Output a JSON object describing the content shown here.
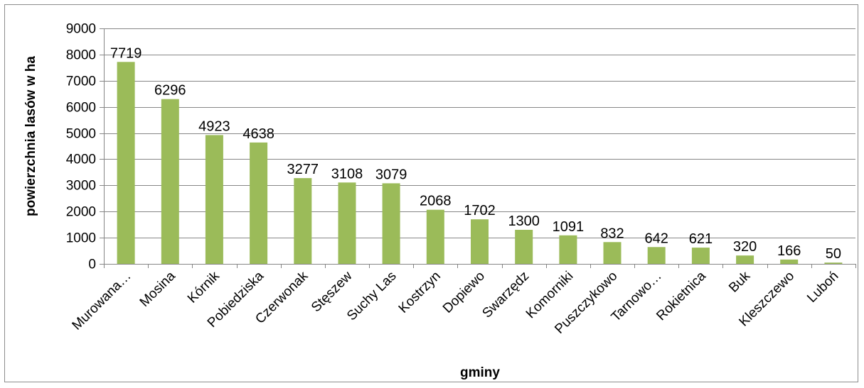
{
  "chart_data": {
    "type": "bar",
    "categories": [
      "Murowana…",
      "Mosina",
      "Kórnik",
      "Pobiedziska",
      "Czerwonak",
      "Stęszew",
      "Suchy Las",
      "Kostrzyn",
      "Dopiewo",
      "Swarzędz",
      "Komorniki",
      "Puszczykowo",
      "Tarnowo…",
      "Rokietnica",
      "Buk",
      "Kleszczewo",
      "Luboń"
    ],
    "values": [
      7719,
      6296,
      4923,
      4638,
      3277,
      3108,
      3079,
      2068,
      1702,
      1300,
      1091,
      832,
      642,
      621,
      320,
      166,
      50
    ],
    "data_labels": [
      "7719",
      "6296",
      "4923",
      "4638",
      "3277",
      "3108",
      "3079",
      "2068",
      "1702",
      "1300",
      "1091",
      "832",
      "642",
      "621",
      "320",
      "166",
      "50"
    ],
    "xlabel": "gminy",
    "ylabel": "powierzchnia lasów w ha",
    "ylim": [
      0,
      9000
    ],
    "yticks": [
      "0",
      "1000",
      "2000",
      "3000",
      "4000",
      "5000",
      "6000",
      "7000",
      "8000",
      "9000"
    ],
    "grid": true,
    "legend": "none",
    "bar_color": "#9BBB59",
    "grid_color": "#868686",
    "axis_color": "#868686"
  }
}
